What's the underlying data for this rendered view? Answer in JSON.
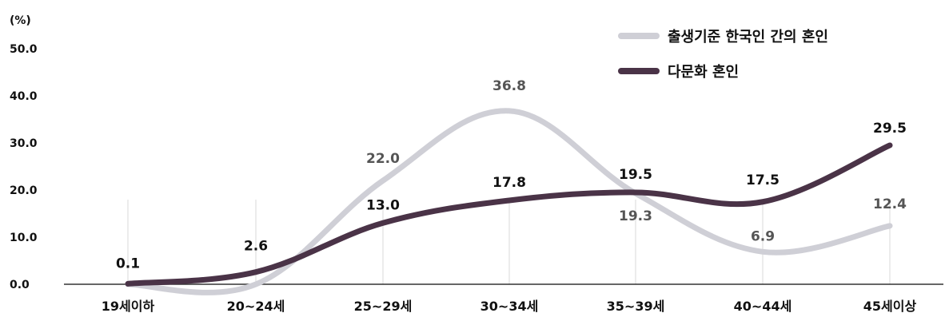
{
  "chart_data": {
    "type": "line",
    "unit_label": "(%)",
    "categories": [
      "19세이하",
      "20~24세",
      "25~29세",
      "30~34세",
      "35~39세",
      "40~44세",
      "45세이상"
    ],
    "ylim": [
      0,
      50
    ],
    "yticks": [
      "0.0",
      "10.0",
      "20.0",
      "30.0",
      "40.0",
      "50.0"
    ],
    "grid": false,
    "legend_position": "top-right",
    "series": [
      {
        "name": "출생기준 한국인 간의 혼인",
        "color": "#cfcfd6",
        "values": [
          null,
          null,
          22.0,
          36.8,
          19.3,
          6.9,
          12.4
        ],
        "labels": [
          "",
          "",
          "22.0",
          "36.8",
          "19.3",
          "6.9",
          "12.4"
        ],
        "path_values": [
          0,
          0,
          22.0,
          36.8,
          19.3,
          6.9,
          12.4
        ]
      },
      {
        "name": "다문화 혼인",
        "color": "#4a3347",
        "values": [
          0.1,
          2.6,
          13.0,
          17.8,
          19.5,
          17.5,
          29.5
        ],
        "labels": [
          "0.1",
          "2.6",
          "13.0",
          "17.8",
          "19.5",
          "17.5",
          "29.5"
        ],
        "path_values": [
          0.1,
          2.6,
          13.0,
          17.8,
          19.5,
          17.5,
          29.5
        ]
      }
    ]
  }
}
